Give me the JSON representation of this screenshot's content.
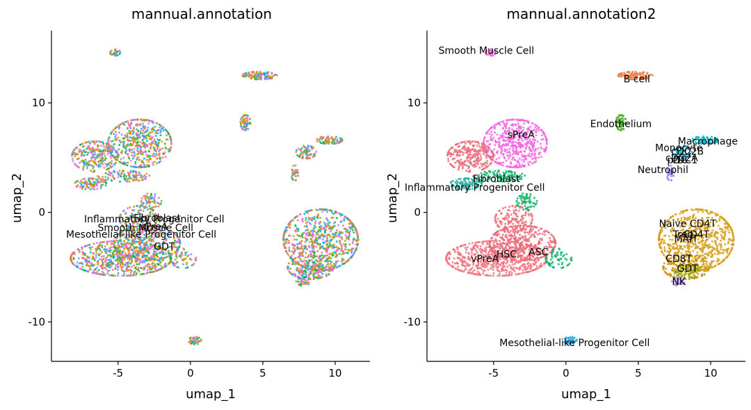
{
  "chart_data": [
    {
      "type": "scatter",
      "title": "mannual.annotation",
      "xlabel": "umap_1",
      "ylabel": "umap_2",
      "xlim": [
        -9.6,
        12.4
      ],
      "ylim": [
        -13.6,
        16.6
      ],
      "xticks": [
        "-5",
        "0",
        "5",
        "10"
      ],
      "yticks": [
        "-10",
        "0",
        "10"
      ],
      "legend": "none",
      "colored_by": "mixed (annotation not matched to clusters)",
      "labels": [
        {
          "text": "Inflammatory Progenitor Cell",
          "x": -2.5,
          "y": -0.6
        },
        {
          "text": "Fibroblast",
          "x": -2.3,
          "y": -0.5
        },
        {
          "text": "Smooth Muscle Cell",
          "x": -3.1,
          "y": -1.4
        },
        {
          "text": "Mesothelial-like Progenitor Cell",
          "x": -3.4,
          "y": -2.0
        },
        {
          "text": "sPreA",
          "x": -2.5,
          "y": -1.3
        },
        {
          "text": "GDT",
          "x": -1.8,
          "y": -3.1
        }
      ]
    },
    {
      "type": "scatter",
      "title": "mannual.annotation2",
      "xlabel": "umap_1",
      "ylabel": "umap_2",
      "xlim": [
        -9.6,
        12.4
      ],
      "ylim": [
        -13.6,
        16.6
      ],
      "xticks": [
        "-5",
        "0",
        "5",
        "10"
      ],
      "yticks": [
        "-10",
        "0",
        "10"
      ],
      "legend": "none",
      "colored_by": "cluster annotation",
      "clusters": [
        {
          "name": "Smooth Muscle Cell",
          "color": "#f16ddc",
          "label_x": -5.5,
          "label_y": 14.8
        },
        {
          "name": "B cell",
          "color": "#ef7f4a",
          "label_x": 4.9,
          "label_y": 12.2
        },
        {
          "name": "sPreA",
          "color": "#f665e2",
          "label_x": -3.1,
          "label_y": 7.1
        },
        {
          "name": "Endothelium",
          "color": "#4fae2c",
          "label_x": 3.8,
          "label_y": 8.1
        },
        {
          "name": "Macrophage",
          "color": "#10b7c9",
          "label_x": 9.8,
          "label_y": 6.5
        },
        {
          "name": "Monocyte",
          "color": "#14b4d8",
          "label_x": 7.8,
          "label_y": 5.9
        },
        {
          "name": "cDC2B",
          "color": "#22a7e8",
          "label_x": 8.4,
          "label_y": 5.6
        },
        {
          "name": "cDC2A",
          "color": "#2ba0f0",
          "label_x": 8.0,
          "label_y": 5.0
        },
        {
          "name": "pDC",
          "color": "#5e9bf5",
          "label_x": 7.7,
          "label_y": 4.8
        },
        {
          "name": "cDC1",
          "color": "#7b93f7",
          "label_x": 8.2,
          "label_y": 4.8
        },
        {
          "name": "Neutrophil",
          "color": "#9d8cf4",
          "label_x": 6.7,
          "label_y": 3.9
        },
        {
          "name": "Fibroblast",
          "color": "#15b36d",
          "label_x": -4.8,
          "label_y": 3.1
        },
        {
          "name": "Inflammatory Progenitor Cell",
          "color": "#24aaa0",
          "label_x": -6.3,
          "label_y": 2.3
        },
        {
          "name": "Naive CD4T",
          "color": "#d7a01e",
          "label_x": 8.4,
          "label_y": -1.0
        },
        {
          "name": "Treg",
          "color": "#c59a0a",
          "label_x": 8.1,
          "label_y": -2.0
        },
        {
          "name": "CD4T",
          "color": "#b79f09",
          "label_x": 9.0,
          "label_y": -2.0
        },
        {
          "name": "MAIT",
          "color": "#a8a20f",
          "label_x": 8.3,
          "label_y": -2.4
        },
        {
          "name": "CD8T",
          "color": "#c89511",
          "label_x": 7.8,
          "label_y": -4.2
        },
        {
          "name": "GDT",
          "color": "#97a514",
          "label_x": 8.4,
          "label_y": -5.1
        },
        {
          "name": "NK",
          "color": "#b190f0",
          "label_x": 7.8,
          "label_y": -6.3
        },
        {
          "name": "vPreA",
          "color": "#f27680",
          "label_x": -5.6,
          "label_y": -4.2
        },
        {
          "name": "HSC",
          "color": "#ee7178",
          "label_x": -4.1,
          "label_y": -3.8
        },
        {
          "name": "ASC",
          "color": "#ea6c7a",
          "label_x": -1.9,
          "label_y": -3.6
        },
        {
          "name": "Mesothelial-like Progenitor Cell",
          "color": "#1fa8e6",
          "label_x": 0.6,
          "label_y": -11.9
        }
      ]
    }
  ]
}
